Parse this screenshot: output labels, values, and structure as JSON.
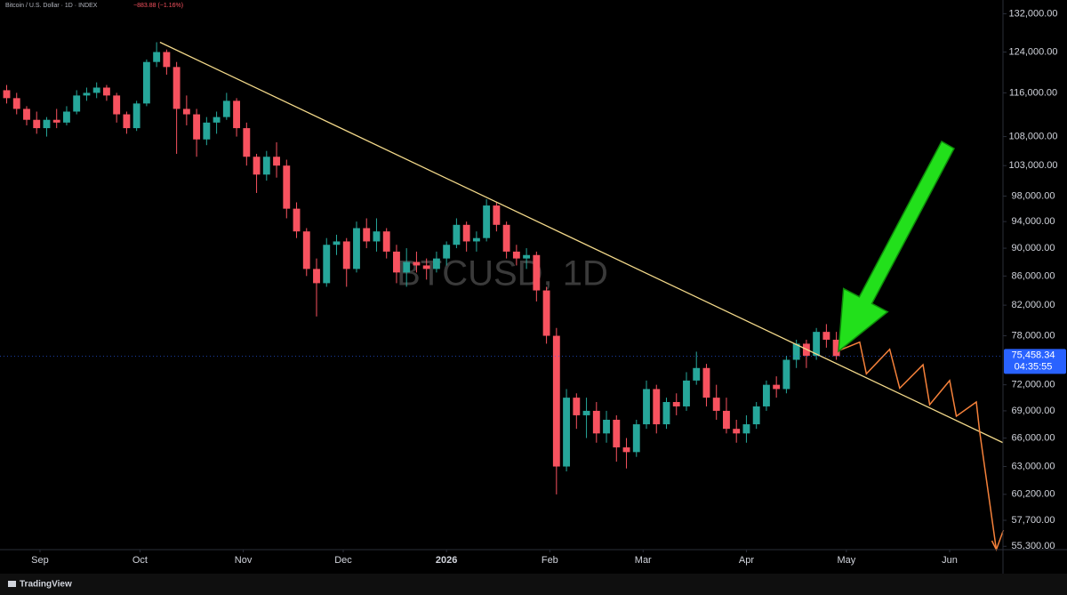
{
  "chart_data": {
    "type": "candlestick",
    "title": "Bitcoin / U.S. Dollar · 1D · INDEX",
    "change": "−883.88 (−1.16%)",
    "watermark": "BTCUSD, 1D",
    "brand": "TradingView",
    "log_scale": true,
    "up_color": "#26a69a",
    "down_color": "#f7525f",
    "ylim": [
      55000,
      135000
    ],
    "yticks": [
      {
        "value": 132000,
        "label": "132,000.00"
      },
      {
        "value": 124000,
        "label": "124,000.00"
      },
      {
        "value": 116000,
        "label": "116,000.00"
      },
      {
        "value": 108000,
        "label": "108,000.00"
      },
      {
        "value": 103000,
        "label": "103,000.00"
      },
      {
        "value": 98000,
        "label": "98,000.00"
      },
      {
        "value": 94000,
        "label": "94,000.00"
      },
      {
        "value": 90000,
        "label": "90,000.00"
      },
      {
        "value": 86000,
        "label": "86,000.00"
      },
      {
        "value": 82000,
        "label": "82,000.00"
      },
      {
        "value": 78000,
        "label": "78,000.00"
      },
      {
        "value": 72000,
        "label": "72,000.00"
      },
      {
        "value": 69000,
        "label": "69,000.00"
      },
      {
        "value": 66000,
        "label": "66,000.00"
      },
      {
        "value": 63000,
        "label": "63,000.00"
      },
      {
        "value": 60200,
        "label": "60,200.00"
      },
      {
        "value": 57700,
        "label": "57,700.00"
      },
      {
        "value": 55300,
        "label": "55,300.00"
      }
    ],
    "xlim": [
      -12,
      289
    ],
    "xticks": [
      {
        "value": 0,
        "label": "Sep"
      },
      {
        "value": 30,
        "label": "Oct"
      },
      {
        "value": 61,
        "label": "Nov"
      },
      {
        "value": 91,
        "label": "Dec"
      },
      {
        "value": 122,
        "label": "2026"
      },
      {
        "value": 153,
        "label": "Feb"
      },
      {
        "value": 181,
        "label": "Mar"
      },
      {
        "value": 212,
        "label": "Apr"
      },
      {
        "value": 242,
        "label": "May"
      },
      {
        "value": 273,
        "label": "Jun"
      }
    ],
    "x": [
      -10,
      -7,
      -4,
      -1,
      2,
      5,
      8,
      11,
      14,
      17,
      20,
      23,
      26,
      29,
      32,
      35,
      38,
      41,
      44,
      47,
      50,
      53,
      56,
      59,
      62,
      65,
      68,
      71,
      74,
      77,
      80,
      83,
      86,
      89,
      92,
      95,
      98,
      101,
      104,
      107,
      110,
      113,
      116,
      119,
      122,
      125,
      128,
      131,
      134,
      137,
      140,
      143,
      146,
      149,
      152,
      155,
      158,
      161,
      164,
      167,
      170,
      173,
      176,
      179,
      182,
      185,
      188,
      191,
      194,
      197,
      200,
      203,
      206,
      209,
      212,
      215,
      218,
      221,
      224,
      227,
      230,
      233,
      236,
      239
    ],
    "open": [
      116500,
      115000,
      113000,
      111000,
      109500,
      111000,
      110500,
      112500,
      115500,
      116000,
      117000,
      115500,
      112000,
      109500,
      114000,
      122000,
      124000,
      121000,
      113000,
      112000,
      107500,
      110500,
      111500,
      114500,
      109500,
      104500,
      101500,
      104500,
      103000,
      96000,
      92500,
      87000,
      85000,
      90500,
      91000,
      87000,
      93000,
      91000,
      92500,
      89500,
      86500,
      88000,
      87500,
      87000,
      88500,
      90500,
      93500,
      91000,
      91500,
      96500,
      93500,
      89500,
      88500,
      89000,
      84000,
      78000,
      63000,
      70500,
      68500,
      69000,
      66500,
      68000,
      65000,
      64500,
      67500,
      71500,
      67500,
      70000,
      69500,
      72500,
      74000,
      70500,
      69000,
      67000,
      66500,
      67500,
      69500,
      72000,
      71500,
      75000,
      77000,
      75500,
      78500,
      77500
    ],
    "high": [
      117500,
      116000,
      113500,
      112500,
      111500,
      113000,
      113500,
      116500,
      117000,
      118000,
      117500,
      116000,
      112500,
      114500,
      122500,
      126000,
      124500,
      122000,
      115500,
      113000,
      111500,
      112500,
      116000,
      115000,
      110500,
      105000,
      105500,
      107000,
      104000,
      97000,
      93000,
      88500,
      91500,
      92000,
      91500,
      94000,
      94500,
      94500,
      93000,
      90500,
      90000,
      89500,
      88500,
      89500,
      91000,
      94500,
      94000,
      92500,
      97500,
      97000,
      94000,
      90500,
      90000,
      89500,
      84500,
      79000,
      71500,
      71000,
      70500,
      70000,
      69000,
      68500,
      66000,
      68000,
      72500,
      72000,
      70500,
      71000,
      73500,
      76000,
      74500,
      72000,
      70500,
      68000,
      68500,
      70000,
      72500,
      73000,
      75500,
      77500,
      77500,
      79000,
      79500,
      78500
    ],
    "low": [
      114000,
      112000,
      110000,
      108500,
      108000,
      109500,
      110000,
      112000,
      114500,
      115000,
      114500,
      110500,
      108500,
      109000,
      113500,
      121000,
      119500,
      105000,
      110000,
      104500,
      106500,
      108500,
      111000,
      108000,
      103000,
      98500,
      100500,
      101000,
      94500,
      91500,
      86000,
      80500,
      84500,
      89000,
      84500,
      86500,
      90000,
      89500,
      88500,
      85000,
      84500,
      86500,
      85500,
      86500,
      87500,
      90000,
      89500,
      89500,
      91000,
      92500,
      88500,
      87500,
      87000,
      82500,
      77000,
      60200,
      62500,
      67000,
      66000,
      65500,
      65500,
      63500,
      62800,
      64000,
      67000,
      66500,
      67000,
      68500,
      69000,
      72000,
      69500,
      68000,
      66500,
      65500,
      65500,
      67000,
      69000,
      70500,
      71000,
      74000,
      74000,
      75000,
      76500,
      75000
    ],
    "close": [
      115000,
      113000,
      111000,
      109500,
      111000,
      110500,
      112500,
      115500,
      116000,
      117000,
      115500,
      112000,
      109500,
      114000,
      122000,
      124000,
      121000,
      113000,
      112000,
      107500,
      110500,
      111500,
      114500,
      109500,
      104500,
      101500,
      104500,
      103000,
      96000,
      92500,
      87000,
      85000,
      90500,
      91000,
      87000,
      93000,
      91000,
      92500,
      89500,
      86500,
      88000,
      87500,
      87000,
      88500,
      90500,
      93500,
      91000,
      91500,
      96500,
      93500,
      89500,
      88500,
      89000,
      84000,
      78000,
      63000,
      70500,
      68500,
      69000,
      66500,
      68000,
      65000,
      64500,
      67500,
      71500,
      67500,
      70000,
      69500,
      72500,
      74000,
      70500,
      69000,
      67000,
      66500,
      67500,
      69500,
      72000,
      71500,
      75000,
      77000,
      75500,
      78500,
      77500,
      75458.34
    ],
    "last_price": {
      "value": 75458.34,
      "label": "75,458.34"
    },
    "countdown": "04:35:55",
    "trendline": {
      "color": "#f3d98a",
      "x": [
        36,
        289
      ],
      "y": [
        126000,
        65500
      ]
    },
    "projection": {
      "color": "#f5813a",
      "x": [
        239.5,
        246,
        248,
        255,
        258,
        265,
        267,
        273,
        275,
        281,
        282,
        287
      ],
      "y": [
        76100,
        77200,
        73300,
        76300,
        71600,
        74400,
        69700,
        72500,
        68400,
        70000,
        66700,
        55000
      ]
    }
  }
}
